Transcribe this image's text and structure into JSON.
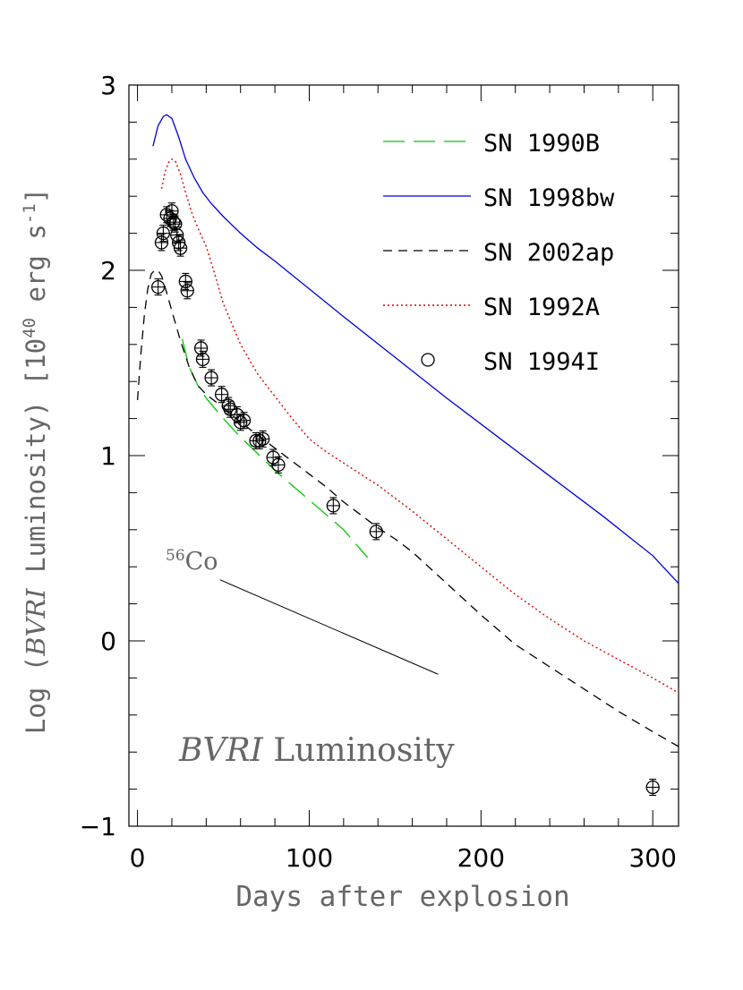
{
  "chart_data": {
    "type": "line",
    "title": "",
    "xlabel": "Days after explosion",
    "ylabel": {
      "prefix": "Log (",
      "italic": "BVRI",
      "middle": " Luminosity) [10",
      "exp": "40",
      "unit": " erg s",
      "unit_exp": "-1",
      "suffix": "]"
    },
    "xlim": [
      -5,
      315
    ],
    "ylim": [
      -1,
      3
    ],
    "x_ticks": [
      0,
      100,
      200,
      300
    ],
    "y_ticks": [
      -1,
      0,
      1,
      2,
      3
    ],
    "grid": false,
    "legend_position": "top-right",
    "annotations": {
      "panel_label_italic": "BVRI",
      "panel_label_rest": " Luminosity",
      "co_label_sup": "56",
      "co_label": "Co",
      "co_slope_line": {
        "x": [
          48,
          175
        ],
        "y": [
          0.33,
          -0.18
        ]
      }
    },
    "series": [
      {
        "name": "SN 1990B",
        "style": "long-dash",
        "color": "#00c800",
        "x": [
          26,
          30,
          35,
          40,
          50,
          60,
          70,
          80,
          90,
          100,
          110,
          120,
          134
        ],
        "y": [
          1.63,
          1.48,
          1.38,
          1.31,
          1.2,
          1.1,
          1.01,
          0.92,
          0.84,
          0.76,
          0.68,
          0.6,
          0.45
        ]
      },
      {
        "name": "SN 1998bw",
        "style": "solid",
        "color": "#0000e0",
        "x": [
          9,
          12,
          15,
          17,
          20,
          24,
          28,
          33,
          38,
          43,
          50,
          60,
          70,
          80,
          100,
          120,
          150,
          180,
          210,
          240,
          270,
          300,
          315
        ],
        "y": [
          2.67,
          2.78,
          2.83,
          2.84,
          2.82,
          2.72,
          2.6,
          2.5,
          2.42,
          2.36,
          2.29,
          2.2,
          2.12,
          2.05,
          1.9,
          1.75,
          1.53,
          1.31,
          1.1,
          0.89,
          0.68,
          0.46,
          0.31
        ]
      },
      {
        "name": "SN 2002ap",
        "style": "short-dash",
        "color": "#000000",
        "x": [
          0,
          2,
          4,
          6,
          8,
          10,
          12,
          14,
          17,
          20,
          25,
          30,
          35,
          40,
          50,
          60,
          70,
          80,
          90,
          100,
          110,
          120,
          130,
          140,
          150,
          160,
          180,
          200,
          220,
          240,
          260,
          280,
          300,
          315
        ],
        "y": [
          1.3,
          1.55,
          1.76,
          1.9,
          1.98,
          2.0,
          2.0,
          1.97,
          1.88,
          1.78,
          1.62,
          1.48,
          1.38,
          1.33,
          1.26,
          1.18,
          1.11,
          1.04,
          0.97,
          0.9,
          0.83,
          0.75,
          0.68,
          0.61,
          0.55,
          0.48,
          0.31,
          0.14,
          -0.02,
          -0.14,
          -0.26,
          -0.38,
          -0.49,
          -0.57
        ]
      },
      {
        "name": "SN 1992A",
        "style": "dotted",
        "color": "#e00000",
        "x": [
          14,
          16,
          18,
          20,
          22,
          25,
          28,
          32,
          36,
          40,
          45,
          50,
          60,
          70,
          80,
          90,
          100,
          110,
          120,
          140,
          160,
          180,
          200,
          220,
          240,
          260,
          280,
          300,
          315
        ],
        "y": [
          2.44,
          2.53,
          2.58,
          2.6,
          2.59,
          2.52,
          2.42,
          2.3,
          2.21,
          2.13,
          1.98,
          1.82,
          1.6,
          1.44,
          1.32,
          1.2,
          1.09,
          1.02,
          0.96,
          0.84,
          0.7,
          0.55,
          0.4,
          0.25,
          0.12,
          0.0,
          -0.1,
          -0.2,
          -0.28
        ]
      },
      {
        "name": "SN 1994I",
        "style": "points",
        "color": "#000000",
        "x": [
          12,
          14,
          15,
          17,
          19,
          20,
          21,
          22,
          23,
          24,
          25,
          28,
          29,
          37,
          38,
          43,
          49,
          53,
          54,
          58,
          60,
          62,
          69,
          71,
          73,
          79,
          82,
          114,
          139,
          300
        ],
        "y": [
          1.91,
          2.15,
          2.2,
          2.3,
          2.28,
          2.32,
          2.26,
          2.25,
          2.19,
          2.15,
          2.12,
          1.94,
          1.89,
          1.58,
          1.52,
          1.42,
          1.33,
          1.27,
          1.25,
          1.22,
          1.18,
          1.19,
          1.08,
          1.08,
          1.09,
          0.99,
          0.95,
          0.73,
          0.59,
          -0.79
        ]
      }
    ]
  }
}
